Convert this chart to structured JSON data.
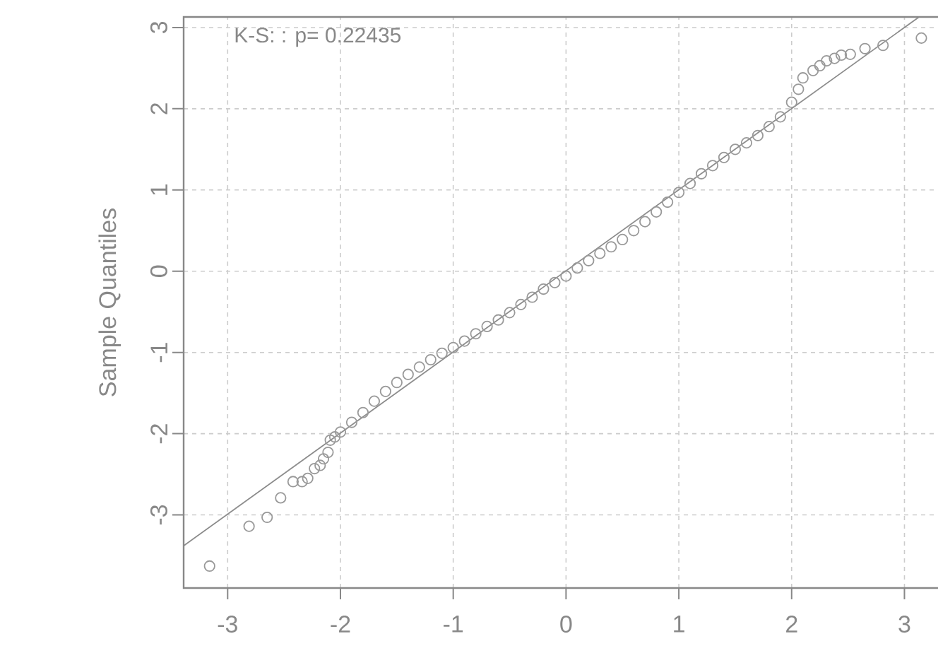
{
  "chart_data": {
    "type": "scatter",
    "ylabel": "Sample Quantiles",
    "annotations": [
      "K-S: : p= 0.22435"
    ],
    "xlim": [
      -3.39,
      3.31
    ],
    "ylim": [
      -3.9,
      3.13
    ],
    "xticks": [
      -3,
      -2,
      -1,
      0,
      1,
      2,
      3
    ],
    "yticks": [
      -3,
      -2,
      -1,
      0,
      1,
      2,
      3
    ],
    "grid": true,
    "series": [
      {
        "marker": "circle",
        "color": "#999999",
        "x": [
          -3.16,
          -2.81,
          -2.65,
          -2.53,
          -2.42,
          -2.34,
          -2.29,
          -2.23,
          -2.18,
          -2.15,
          -2.11,
          -2.09,
          -2.05,
          -2.0,
          -1.9,
          -1.8,
          -1.7,
          -1.6,
          -1.5,
          -1.4,
          -1.3,
          -1.2,
          -1.1,
          -1.0,
          -0.9,
          -0.8,
          -0.7,
          -0.6,
          -0.5,
          -0.4,
          -0.3,
          -0.2,
          -0.1,
          0,
          0.1,
          0.2,
          0.3,
          0.4,
          0.5,
          0.6,
          0.7,
          0.8,
          0.9,
          1.0,
          1.1,
          1.2,
          1.3,
          1.4,
          1.5,
          1.6,
          1.7,
          1.8,
          1.9,
          2.0,
          2.06,
          2.1,
          2.19,
          2.25,
          2.31,
          2.38,
          2.44,
          2.52,
          2.65,
          2.81,
          3.15
        ],
        "values": [
          -3.63,
          -3.14,
          -3.03,
          -2.79,
          -2.59,
          -2.59,
          -2.55,
          -2.43,
          -2.39,
          -2.31,
          -2.23,
          -2.08,
          -2.04,
          -1.98,
          -1.86,
          -1.74,
          -1.6,
          -1.48,
          -1.37,
          -1.27,
          -1.18,
          -1.09,
          -1.01,
          -0.94,
          -0.86,
          -0.77,
          -0.68,
          -0.6,
          -0.51,
          -0.41,
          -0.32,
          -0.22,
          -0.14,
          -0.06,
          0.04,
          0.13,
          0.22,
          0.3,
          0.39,
          0.5,
          0.61,
          0.73,
          0.85,
          0.97,
          1.08,
          1.2,
          1.3,
          1.4,
          1.5,
          1.58,
          1.67,
          1.78,
          1.9,
          2.08,
          2.24,
          2.38,
          2.47,
          2.53,
          2.59,
          2.62,
          2.66,
          2.67,
          2.74,
          2.78,
          2.87
        ]
      },
      {
        "type": "line",
        "marker": "none",
        "color": "#8c8c8c",
        "x": [
          -3.39,
          3.13
        ],
        "values": [
          -3.38,
          3.13
        ]
      }
    ]
  }
}
